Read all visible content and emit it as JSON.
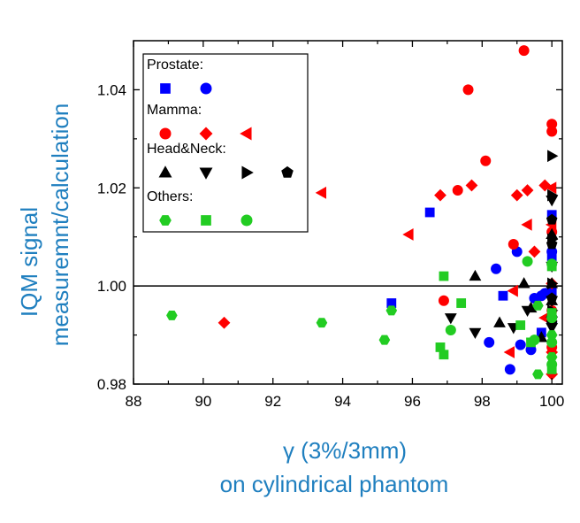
{
  "chart_data": {
    "type": "scatter",
    "xlabel": [
      "γ (3%/3mm)",
      "on cylindrical phantom"
    ],
    "ylabel": [
      "IQM signal",
      "measuremnt/calculation"
    ],
    "xlim": [
      88,
      100.3
    ],
    "ylim": [
      0.98,
      1.05
    ],
    "xticks": [
      "88",
      "90",
      "92",
      "94",
      "96",
      "98",
      "100"
    ],
    "yticks": [
      "0.98",
      "1.00",
      "1.02",
      "1.04"
    ],
    "reference_line_y": 1.0,
    "legend_position": "top-left",
    "legend_groups": [
      {
        "label": "Prostate:",
        "series": [
          0,
          1
        ]
      },
      {
        "label": "Mamma:",
        "series": [
          2,
          3,
          4
        ]
      },
      {
        "label": "Head&Neck:",
        "series": [
          5,
          6,
          7,
          8
        ]
      },
      {
        "label": "Others:",
        "series": [
          9,
          10,
          11
        ]
      }
    ],
    "colors": {
      "prostate": "#0000ff",
      "mamma": "#ff0000",
      "headneck": "#000000",
      "others": "#22cc22",
      "axis_title": "#1f7fbf"
    },
    "series": [
      {
        "marker": "square",
        "color": "#0000ff",
        "points": [
          [
            95.4,
            0.9965
          ],
          [
            96.5,
            1.015
          ],
          [
            98.6,
            0.998
          ],
          [
            99.7,
            0.9905
          ],
          [
            100,
            1.006
          ],
          [
            100,
            0.999
          ],
          [
            100,
            1.0145
          ]
        ]
      },
      {
        "marker": "circle",
        "color": "#0000ff",
        "points": [
          [
            98.2,
            0.9885
          ],
          [
            98.4,
            1.0035
          ],
          [
            98.8,
            0.983
          ],
          [
            99.0,
            1.007
          ],
          [
            99.1,
            0.988
          ],
          [
            99.4,
            0.987
          ],
          [
            99.5,
            0.9975
          ],
          [
            99.7,
            0.998
          ],
          [
            99.8,
            0.9985
          ],
          [
            100,
            1.007
          ],
          [
            100,
            0.9925
          ]
        ]
      },
      {
        "marker": "circle",
        "color": "#ff0000",
        "points": [
          [
            96.9,
            0.997
          ],
          [
            97.3,
            1.0195
          ],
          [
            97.6,
            1.04
          ],
          [
            98.1,
            1.0255
          ],
          [
            98.9,
            1.0085
          ],
          [
            99.2,
            1.048
          ],
          [
            100,
            1.033
          ],
          [
            100,
            1.0315
          ],
          [
            100,
            1.011
          ],
          [
            100,
            0.995
          ],
          [
            100,
            0.9875
          ]
        ]
      },
      {
        "marker": "diamond",
        "color": "#ff0000",
        "points": [
          [
            90.6,
            0.9925
          ],
          [
            96.8,
            1.0185
          ],
          [
            97.7,
            1.0205
          ],
          [
            99.0,
            1.0185
          ],
          [
            99.3,
            1.0195
          ],
          [
            99.5,
            1.007
          ],
          [
            99.8,
            1.0205
          ],
          [
            100,
            1.0005
          ],
          [
            100,
            0.982
          ],
          [
            100,
            0.9865
          ]
        ]
      },
      {
        "marker": "triangle-left",
        "color": "#ff0000",
        "points": [
          [
            93.4,
            1.019
          ],
          [
            95.9,
            1.0105
          ],
          [
            98.8,
            0.9865
          ],
          [
            98.9,
            0.999
          ],
          [
            99.3,
            1.0125
          ],
          [
            99.8,
            0.9935
          ],
          [
            100,
            1.02
          ],
          [
            100,
            1.0125
          ]
        ]
      },
      {
        "marker": "triangle-up",
        "color": "#000000",
        "points": [
          [
            97.8,
            1.002
          ],
          [
            98.5,
            0.9925
          ],
          [
            99.2,
            1.0005
          ],
          [
            99.4,
            0.9955
          ],
          [
            99.7,
            0.9895
          ],
          [
            100,
            1.0105
          ],
          [
            100,
            1.0005
          ],
          [
            100,
            0.997
          ],
          [
            100,
            0.9945
          ]
        ]
      },
      {
        "marker": "triangle-down",
        "color": "#000000",
        "points": [
          [
            97.1,
            0.9935
          ],
          [
            97.8,
            0.9905
          ],
          [
            98.9,
            0.9915
          ],
          [
            99.3,
            0.995
          ],
          [
            100,
            1.0175
          ],
          [
            100,
            1.004
          ],
          [
            100,
            0.997
          ],
          [
            100,
            0.9915
          ]
        ]
      },
      {
        "marker": "triangle-right",
        "color": "#000000",
        "points": [
          [
            100,
            1.0265
          ],
          [
            100,
            1.0185
          ],
          [
            100,
            1.0095
          ],
          [
            100,
            1.0005
          ],
          [
            100,
            0.995
          ]
        ]
      },
      {
        "marker": "pentagon",
        "color": "#000000",
        "points": [
          [
            100,
            1.0135
          ],
          [
            100,
            1.0085
          ],
          [
            100,
            0.9975
          ],
          [
            100,
            0.9925
          ]
        ]
      },
      {
        "marker": "hexagon",
        "color": "#22cc22",
        "points": [
          [
            89.1,
            0.994
          ],
          [
            93.4,
            0.9925
          ],
          [
            95.2,
            0.989
          ],
          [
            95.4,
            0.995
          ],
          [
            99.6,
            0.996
          ],
          [
            99.6,
            0.982
          ],
          [
            100,
            0.99
          ],
          [
            100,
            0.9855
          ]
        ]
      },
      {
        "marker": "square",
        "color": "#22cc22",
        "points": [
          [
            96.8,
            0.9875
          ],
          [
            96.9,
            1.002
          ],
          [
            96.9,
            0.986
          ],
          [
            97.4,
            0.9965
          ],
          [
            99.1,
            0.992
          ],
          [
            99.4,
            0.9885
          ],
          [
            100,
            1.004
          ],
          [
            100,
            0.9945
          ],
          [
            100,
            0.983
          ]
        ]
      },
      {
        "marker": "circle",
        "color": "#22cc22",
        "points": [
          [
            97.1,
            0.991
          ],
          [
            99.3,
            1.005
          ],
          [
            99.5,
            0.989
          ],
          [
            100,
            1.0045
          ],
          [
            100,
            0.9935
          ],
          [
            100,
            0.9885
          ],
          [
            100,
            0.984
          ]
        ]
      }
    ]
  }
}
